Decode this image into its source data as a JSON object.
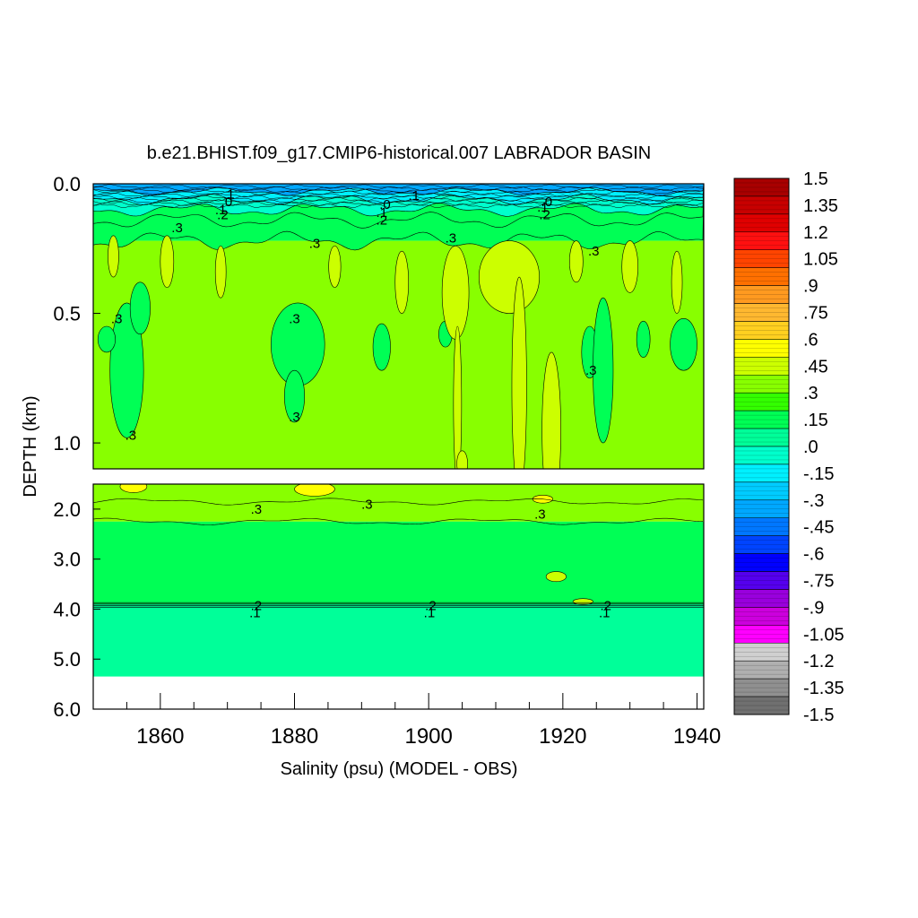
{
  "chart_data": {
    "type": "heatmap",
    "title": "b.e21.BHIST.f09_g17.CMIP6-historical.007 LABRADOR BASIN",
    "xlabel": "Salinity (psu) (MODEL - OBS)",
    "ylabel": "DEPTH (km)",
    "xlim": [
      1850,
      1941
    ],
    "x_ticks": [
      1860,
      1880,
      1900,
      1920,
      1940
    ],
    "x_tick_labels": [
      "1860",
      "1880",
      "1900",
      "1920",
      "1940"
    ],
    "upper_panel": {
      "ylim": [
        0.0,
        1.1
      ],
      "y_ticks": [
        0.0,
        0.5,
        1.0
      ],
      "y_tick_labels": [
        "0.0",
        "0.5",
        "1.0"
      ]
    },
    "lower_panel": {
      "ylim": [
        1.5,
        6.0
      ],
      "y_ticks": [
        2.0,
        3.0,
        4.0,
        5.0,
        6.0
      ],
      "y_tick_labels": [
        "2.0",
        "3.0",
        "4.0",
        "5.0",
        "6.0"
      ]
    },
    "colorbar": {
      "labels": [
        "1.5",
        "1.35",
        "1.2",
        "1.05",
        ".9",
        ".75",
        ".6",
        ".45",
        ".3",
        ".15",
        ".0",
        "-.15",
        "-.3",
        "-.45",
        "-.6",
        "-.75",
        "-.9",
        "-1.05",
        "-1.2",
        "-1.35",
        "-1.5"
      ],
      "colors": [
        "#a80000",
        "#c80000",
        "#e00000",
        "#ff1010",
        "#ff4400",
        "#ff7000",
        "#ff9a20",
        "#ffb830",
        "#ffd020",
        "#ffff00",
        "#ccff00",
        "#88ff00",
        "#33ff00",
        "#00ff55",
        "#00ff99",
        "#00ffcc",
        "#00f0ff",
        "#00ccff",
        "#00a8ff",
        "#0077ff",
        "#0044ff",
        "#0000ff",
        "#5500ee",
        "#9900dd",
        "#cc00dd",
        "#ff00ff",
        "#d0d0d0",
        "#b0b0b0",
        "#909090",
        "#707070"
      ]
    },
    "bands": [
      {
        "panel": "upper",
        "from": 0.0,
        "to": 0.03,
        "value": -0.3
      },
      {
        "panel": "upper",
        "from": 0.03,
        "to": 0.06,
        "value": -0.15
      },
      {
        "panel": "upper",
        "from": 0.06,
        "to": 0.1,
        "value": 0.0
      },
      {
        "panel": "upper",
        "from": 0.1,
        "to": 0.14,
        "value": 0.1
      },
      {
        "panel": "upper",
        "from": 0.14,
        "to": 0.22,
        "value": 0.2
      },
      {
        "panel": "upper",
        "from": 0.22,
        "to": 1.1,
        "value": 0.35
      },
      {
        "panel": "lower",
        "from": 1.5,
        "to": 1.85,
        "value": 0.35
      },
      {
        "panel": "lower",
        "from": 1.85,
        "to": 2.25,
        "value": 0.3
      },
      {
        "panel": "lower",
        "from": 2.25,
        "to": 3.9,
        "value": 0.2
      },
      {
        "panel": "lower",
        "from": 3.9,
        "to": 5.35,
        "value": 0.05
      }
    ],
    "contour_labels": [
      {
        "text": ".1",
        "x": 1870.2,
        "y": 0.04
      },
      {
        "text": ".0",
        "x": 1869.9,
        "y": 0.07
      },
      {
        "text": ".1",
        "x": 1869.0,
        "y": 0.1
      },
      {
        "text": ".2",
        "x": 1869.3,
        "y": 0.12
      },
      {
        "text": ".3",
        "x": 1862.5,
        "y": 0.17
      },
      {
        "text": ".0",
        "x": 1893.5,
        "y": 0.08
      },
      {
        "text": ".1",
        "x": 1897.8,
        "y": 0.045
      },
      {
        "text": ".1",
        "x": 1893.0,
        "y": 0.11
      },
      {
        "text": ".2",
        "x": 1893.0,
        "y": 0.14
      },
      {
        "text": ".3",
        "x": 1883.0,
        "y": 0.23
      },
      {
        "text": ".3",
        "x": 1903.3,
        "y": 0.21
      },
      {
        "text": ".0",
        "x": 1917.6,
        "y": 0.07
      },
      {
        "text": ".1",
        "x": 1917.0,
        "y": 0.09
      },
      {
        "text": ".2",
        "x": 1917.3,
        "y": 0.12
      },
      {
        "text": ".3",
        "x": 1924.6,
        "y": 0.26
      },
      {
        "text": ".3",
        "x": 1853.5,
        "y": 0.52
      },
      {
        "text": ".3",
        "x": 1880.0,
        "y": 0.52
      },
      {
        "text": ".3",
        "x": 1924.2,
        "y": 0.72
      },
      {
        "text": ".3",
        "x": 1880.0,
        "y": 0.9
      },
      {
        "text": ".3",
        "x": 1855.6,
        "y": 0.97
      },
      {
        "text": ".3",
        "x": 1874.3,
        "y": 2.0
      },
      {
        "text": ".3",
        "x": 1890.8,
        "y": 1.9
      },
      {
        "text": ".3",
        "x": 1916.6,
        "y": 2.1
      },
      {
        "text": ".2",
        "x": 1874.3,
        "y": 3.93
      },
      {
        "text": ".1",
        "x": 1874.1,
        "y": 4.07
      },
      {
        "text": ".2",
        "x": 1900.3,
        "y": 3.93
      },
      {
        "text": ".1",
        "x": 1900.1,
        "y": 4.07
      },
      {
        "text": ".2",
        "x": 1926.4,
        "y": 3.93
      },
      {
        "text": ".1",
        "x": 1926.2,
        "y": 4.07
      }
    ]
  }
}
